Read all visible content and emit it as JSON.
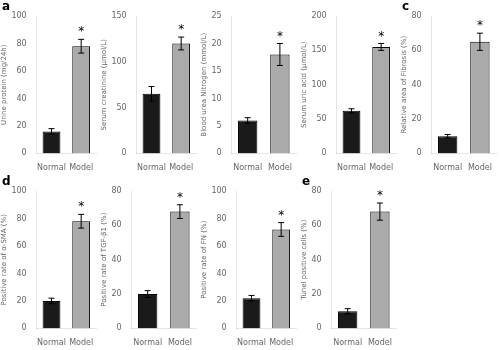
{
  "chart_data": [
    {
      "type": "bar",
      "categories": [
        "Normal",
        "Model"
      ],
      "values": [
        16,
        78
      ],
      "errors": [
        2,
        5
      ],
      "colors": [
        "#1a1a1a",
        "#aaaaaa"
      ],
      "ylabel": "Urine protein (mg/24h)",
      "ylim": [
        0,
        100
      ],
      "yticks": [
        0,
        20,
        40,
        60,
        80,
        100
      ],
      "grid": false,
      "annotations": [
        {
          "text": "a"
        },
        {
          "text": "*",
          "category": "Model"
        }
      ]
    },
    {
      "type": "bar",
      "categories": [
        "Normal",
        "Model"
      ],
      "values": [
        65,
        120
      ],
      "errors": [
        8,
        7
      ],
      "colors": [
        "#1a1a1a",
        "#aaaaaa"
      ],
      "ylabel": "Serum creatinine (μmol/L)",
      "ylim": [
        0,
        150
      ],
      "yticks": [
        0,
        50,
        100,
        150
      ],
      "grid": false,
      "annotations": [
        {
          "text": "*",
          "category": "Model"
        }
      ]
    },
    {
      "type": "bar",
      "categories": [
        "Normal",
        "Model"
      ],
      "values": [
        6,
        18
      ],
      "errors": [
        0.5,
        2
      ],
      "colors": [
        "#1a1a1a",
        "#aaaaaa"
      ],
      "ylabel": "Blood urea Nitrogen (mmol/L)",
      "ylim": [
        0,
        25
      ],
      "yticks": [
        0,
        5,
        10,
        15,
        20,
        25
      ],
      "grid": false,
      "annotations": [
        {
          "text": "*",
          "category": "Model"
        }
      ]
    },
    {
      "type": "bar",
      "categories": [
        "Normal",
        "Model"
      ],
      "values": [
        62,
        155
      ],
      "errors": [
        3,
        5
      ],
      "colors": [
        "#1a1a1a",
        "#aaaaaa"
      ],
      "ylabel": "Serum uric acid (μmol/L)",
      "ylim": [
        0,
        200
      ],
      "yticks": [
        0,
        50,
        100,
        150,
        200
      ],
      "grid": false,
      "annotations": [
        {
          "text": "*",
          "category": "Model"
        }
      ]
    },
    {
      "type": "bar",
      "categories": [
        "Normal",
        "Model"
      ],
      "values": [
        10,
        65
      ],
      "errors": [
        1,
        5
      ],
      "colors": [
        "#1a1a1a",
        "#aaaaaa"
      ],
      "ylabel": "Relative area of Fibrosis (%)",
      "ylim": [
        0,
        80
      ],
      "yticks": [
        0,
        20,
        40,
        60,
        80
      ],
      "grid": false,
      "annotations": [
        {
          "text": "c"
        },
        {
          "text": "*",
          "category": "Model"
        }
      ]
    },
    {
      "type": "bar",
      "categories": [
        "Normal",
        "Model"
      ],
      "values": [
        20,
        78
      ],
      "errors": [
        2,
        5
      ],
      "colors": [
        "#1a1a1a",
        "#aaaaaa"
      ],
      "ylabel": "Positive rate of α-SMA (%)",
      "ylim": [
        0,
        100
      ],
      "yticks": [
        0,
        20,
        40,
        60,
        80,
        100
      ],
      "grid": false,
      "annotations": [
        {
          "text": "d"
        },
        {
          "text": "*",
          "category": "Model"
        }
      ]
    },
    {
      "type": "bar",
      "categories": [
        "Normal",
        "Model"
      ],
      "values": [
        20,
        68
      ],
      "errors": [
        2,
        4
      ],
      "colors": [
        "#1a1a1a",
        "#aaaaaa"
      ],
      "ylabel": "Positive rate of TGF-β1 (%)",
      "ylim": [
        0,
        80
      ],
      "yticks": [
        0,
        20,
        40,
        60,
        80
      ],
      "grid": false,
      "annotations": [
        {
          "text": "*",
          "category": "Model"
        }
      ]
    },
    {
      "type": "bar",
      "categories": [
        "Normal",
        "Model"
      ],
      "values": [
        22,
        72
      ],
      "errors": [
        2,
        5
      ],
      "colors": [
        "#1a1a1a",
        "#aaaaaa"
      ],
      "ylabel": "Positive rate of FN (%)",
      "ylim": [
        0,
        100
      ],
      "yticks": [
        0,
        20,
        40,
        60,
        80,
        100
      ],
      "grid": false,
      "annotations": [
        {
          "text": "*",
          "category": "Model"
        }
      ]
    },
    {
      "type": "bar",
      "categories": [
        "Normal",
        "Model"
      ],
      "values": [
        10,
        68
      ],
      "errors": [
        1.5,
        5
      ],
      "colors": [
        "#1a1a1a",
        "#aaaaaa"
      ],
      "ylabel": "Tunel positive cells (%)",
      "ylim": [
        0,
        80
      ],
      "yticks": [
        0,
        20,
        40,
        60,
        80
      ],
      "grid": false,
      "annotations": [
        {
          "text": "e"
        },
        {
          "text": "*",
          "category": "Model"
        }
      ]
    }
  ]
}
